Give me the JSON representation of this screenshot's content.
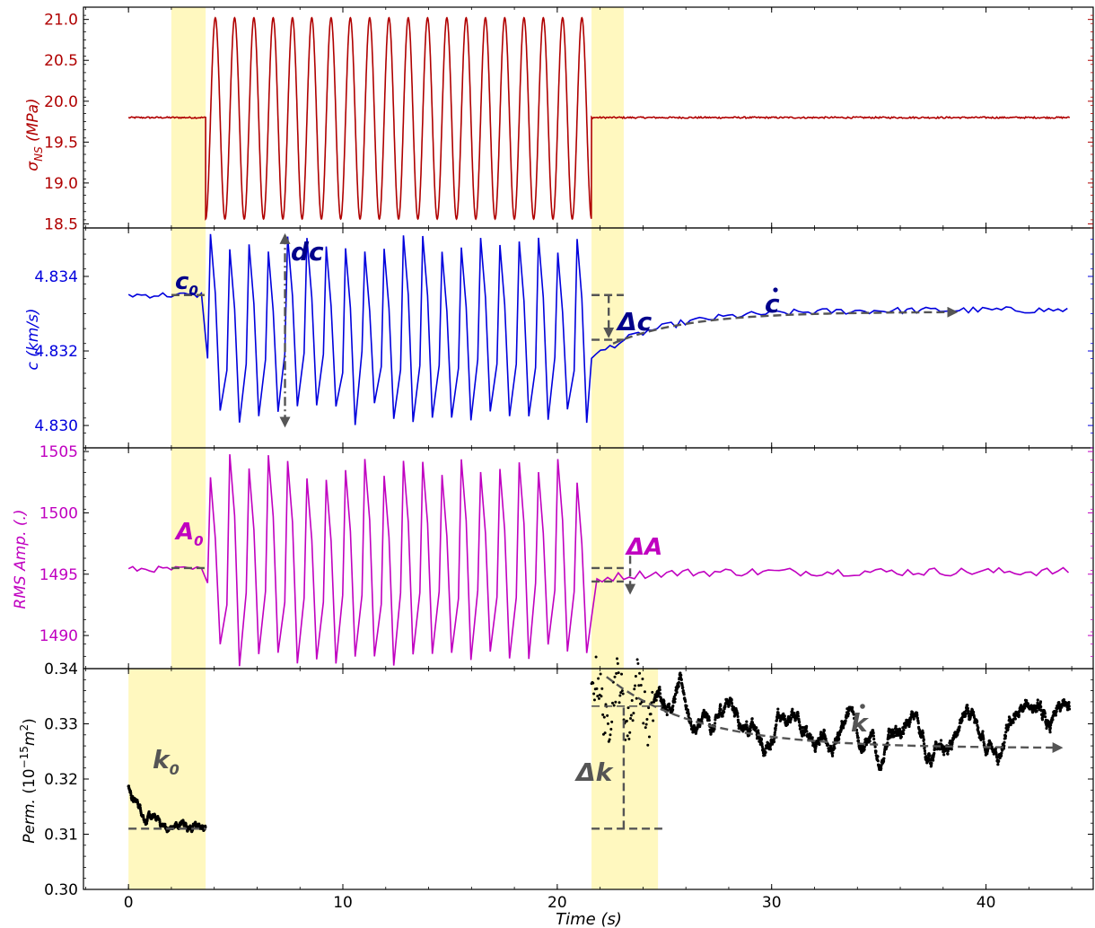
{
  "chart_data": [
    {
      "type": "line",
      "id": "sigma",
      "ylabel": "σNS (MPa)",
      "ylabel_main": "σ",
      "ylabel_sub": "NS",
      "ylabel_unit": " (MPa)",
      "ylim": [
        18.45,
        21.15
      ],
      "yticks": [
        18.5,
        19.0,
        19.5,
        20.0,
        20.5,
        21.0
      ],
      "ytick_labels": [
        "18.5",
        "19.0",
        "19.5",
        "20.0",
        "20.5",
        "21.0"
      ],
      "color": "#b00000",
      "baseline": 19.8,
      "oscillation": {
        "start": 3.6,
        "end": 21.6,
        "min": 18.56,
        "max": 21.02,
        "cycles": 20
      },
      "x_range": [
        0,
        43.9
      ]
    },
    {
      "type": "line",
      "id": "velocity",
      "ylabel": "c (km/s)",
      "ylim": [
        4.8294,
        4.8353
      ],
      "yticks": [
        4.83,
        4.832,
        4.834
      ],
      "ytick_labels": [
        "4.830",
        "4.832",
        "4.834"
      ],
      "color": "#0000dd",
      "baseline": 4.8335,
      "oscillation": {
        "start": 3.6,
        "end": 21.6,
        "min": 4.83,
        "max": 4.8352,
        "cycles": 20
      },
      "recovery": {
        "from": 4.8318,
        "to": 4.8331,
        "end": 43.9
      },
      "annotations": [
        "c0",
        "dc",
        "Δc",
        "ċ"
      ]
    },
    {
      "type": "line",
      "id": "amplitude",
      "ylabel": "RMS Amp. (.)",
      "ylim": [
        1487.3,
        1505.3
      ],
      "yticks": [
        1490,
        1495,
        1500,
        1505
      ],
      "ytick_labels": [
        "1490",
        "1495",
        "1500",
        "1505"
      ],
      "color": "#c000c0",
      "baseline": 1495.4,
      "oscillation": {
        "start": 3.6,
        "end": 21.6,
        "min": 1487.5,
        "max": 1504.8,
        "cycles": 20
      },
      "recovery": {
        "from": 1494.5,
        "to": 1495.2,
        "end": 43.9
      },
      "annotations": [
        "A0",
        "ΔA"
      ]
    },
    {
      "type": "scatter",
      "id": "permeability",
      "ylabel": "Perm. (10^-15 m^2)",
      "ylabel_text": "Perm.",
      "ylabel_unit": "(10",
      "ylabel_exp1": "−15",
      "ylabel_mid": "m",
      "ylabel_exp2": "2",
      "ylabel_close": ")",
      "ylim": [
        0.3,
        0.34
      ],
      "yticks": [
        0.3,
        0.31,
        0.32,
        0.33,
        0.34
      ],
      "ytick_labels": [
        "0.30",
        "0.31",
        "0.32",
        "0.33",
        "0.34"
      ],
      "color": "#000000",
      "segment1": {
        "x": [
          0,
          3.6
        ],
        "start": 0.319,
        "level": 0.311
      },
      "segment2": {
        "x": [
          21.6,
          43.9
        ],
        "peak": 0.338,
        "trend_end": 0.326,
        "final": 0.335
      },
      "annotations": [
        "k0",
        "Δk",
        "k̇"
      ]
    }
  ],
  "x_axis": {
    "label": "Time (s)",
    "xlim": [
      -2.1,
      45.0
    ],
    "ticks": [
      0,
      10,
      20,
      30,
      40
    ],
    "tick_labels": [
      "0",
      "10",
      "20",
      "30",
      "40"
    ]
  },
  "highlight_bands": {
    "color": "#fff8bf",
    "top_panels": [
      [
        2.0,
        3.6
      ],
      [
        21.6,
        23.1
      ]
    ],
    "bottom_panel": [
      [
        0.0,
        3.6
      ],
      [
        21.6,
        24.7
      ]
    ]
  },
  "annotations": {
    "c0": {
      "main": "c",
      "sub": "0",
      "color": "#00008b"
    },
    "dc": {
      "text": "dc",
      "color": "#00008b"
    },
    "delta_c": {
      "text": "Δc",
      "color": "#00008b"
    },
    "c_dot": {
      "text": "c",
      "color": "#00008b"
    },
    "A0": {
      "main": "A",
      "sub": "0",
      "color": "#c000c0"
    },
    "delta_A": {
      "text": "ΔA",
      "color": "#c000c0"
    },
    "k0": {
      "main": "k",
      "sub": "0",
      "color": "#555555"
    },
    "delta_k": {
      "text": "Δk",
      "color": "#555555"
    },
    "k_dot": {
      "text": "k",
      "color": "#555555"
    }
  },
  "colors": {
    "guide": "#555555",
    "axis": "#000000"
  }
}
